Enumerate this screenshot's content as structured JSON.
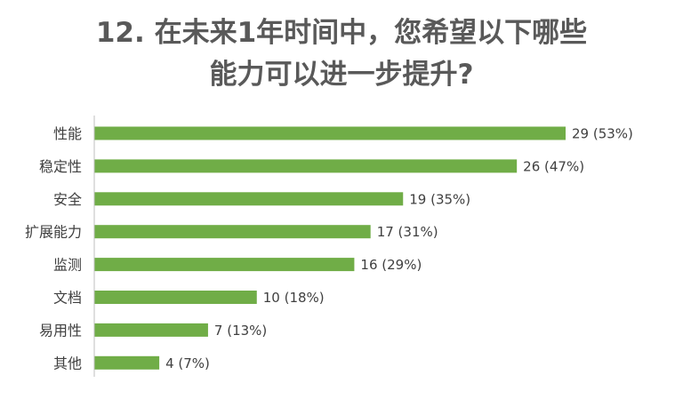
{
  "chart_data": {
    "type": "bar",
    "orientation": "horizontal",
    "title_lines": [
      "12. 在未来1年时间中，您希望以下哪些",
      "能力可以进一步提升?"
    ],
    "categories": [
      "性能",
      "稳定性",
      "安全",
      "扩展能力",
      "监测",
      "文档",
      "易用性",
      "其他"
    ],
    "values": [
      29,
      26,
      19,
      17,
      16,
      10,
      7,
      4
    ],
    "value_labels": [
      "29 (53%)",
      "26 (47%)",
      "19 (35%)",
      "17 (31%)",
      "16 (29%)",
      "10 (18%)",
      "7 (13%)",
      "4 (7%)"
    ],
    "xlim": [
      0,
      29
    ],
    "grid": false,
    "legend": "none",
    "bar_color": "#70AD47",
    "axis_color": "#BFBFBF",
    "text_color": "#404040"
  }
}
